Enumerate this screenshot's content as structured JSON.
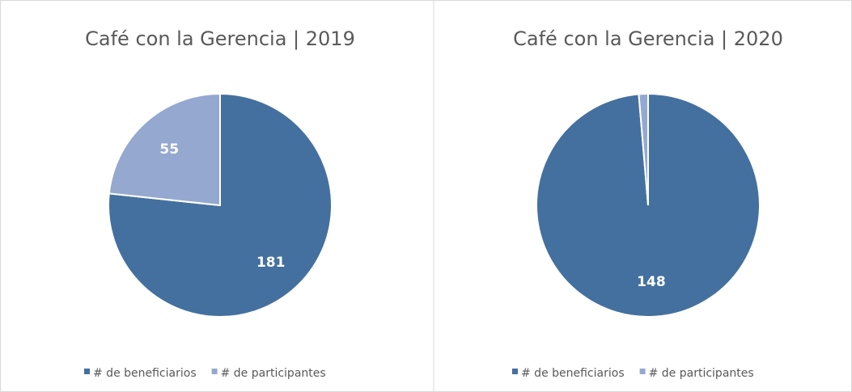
{
  "chart_data": [
    {
      "type": "pie",
      "title": "Café con la Gerencia | 2019",
      "categories": [
        "# de beneficiarios",
        "# de participantes"
      ],
      "values": [
        181,
        55
      ],
      "colors": [
        "#44709f",
        "#95a8d0"
      ],
      "data_labels": [
        true,
        true
      ]
    },
    {
      "type": "pie",
      "title": "Café con la Gerencia | 2020",
      "categories": [
        "# de beneficiarios",
        "# de participantes"
      ],
      "values": [
        148,
        2
      ],
      "colors": [
        "#44709f",
        "#95a8d0"
      ],
      "data_labels": [
        true,
        false
      ]
    }
  ]
}
